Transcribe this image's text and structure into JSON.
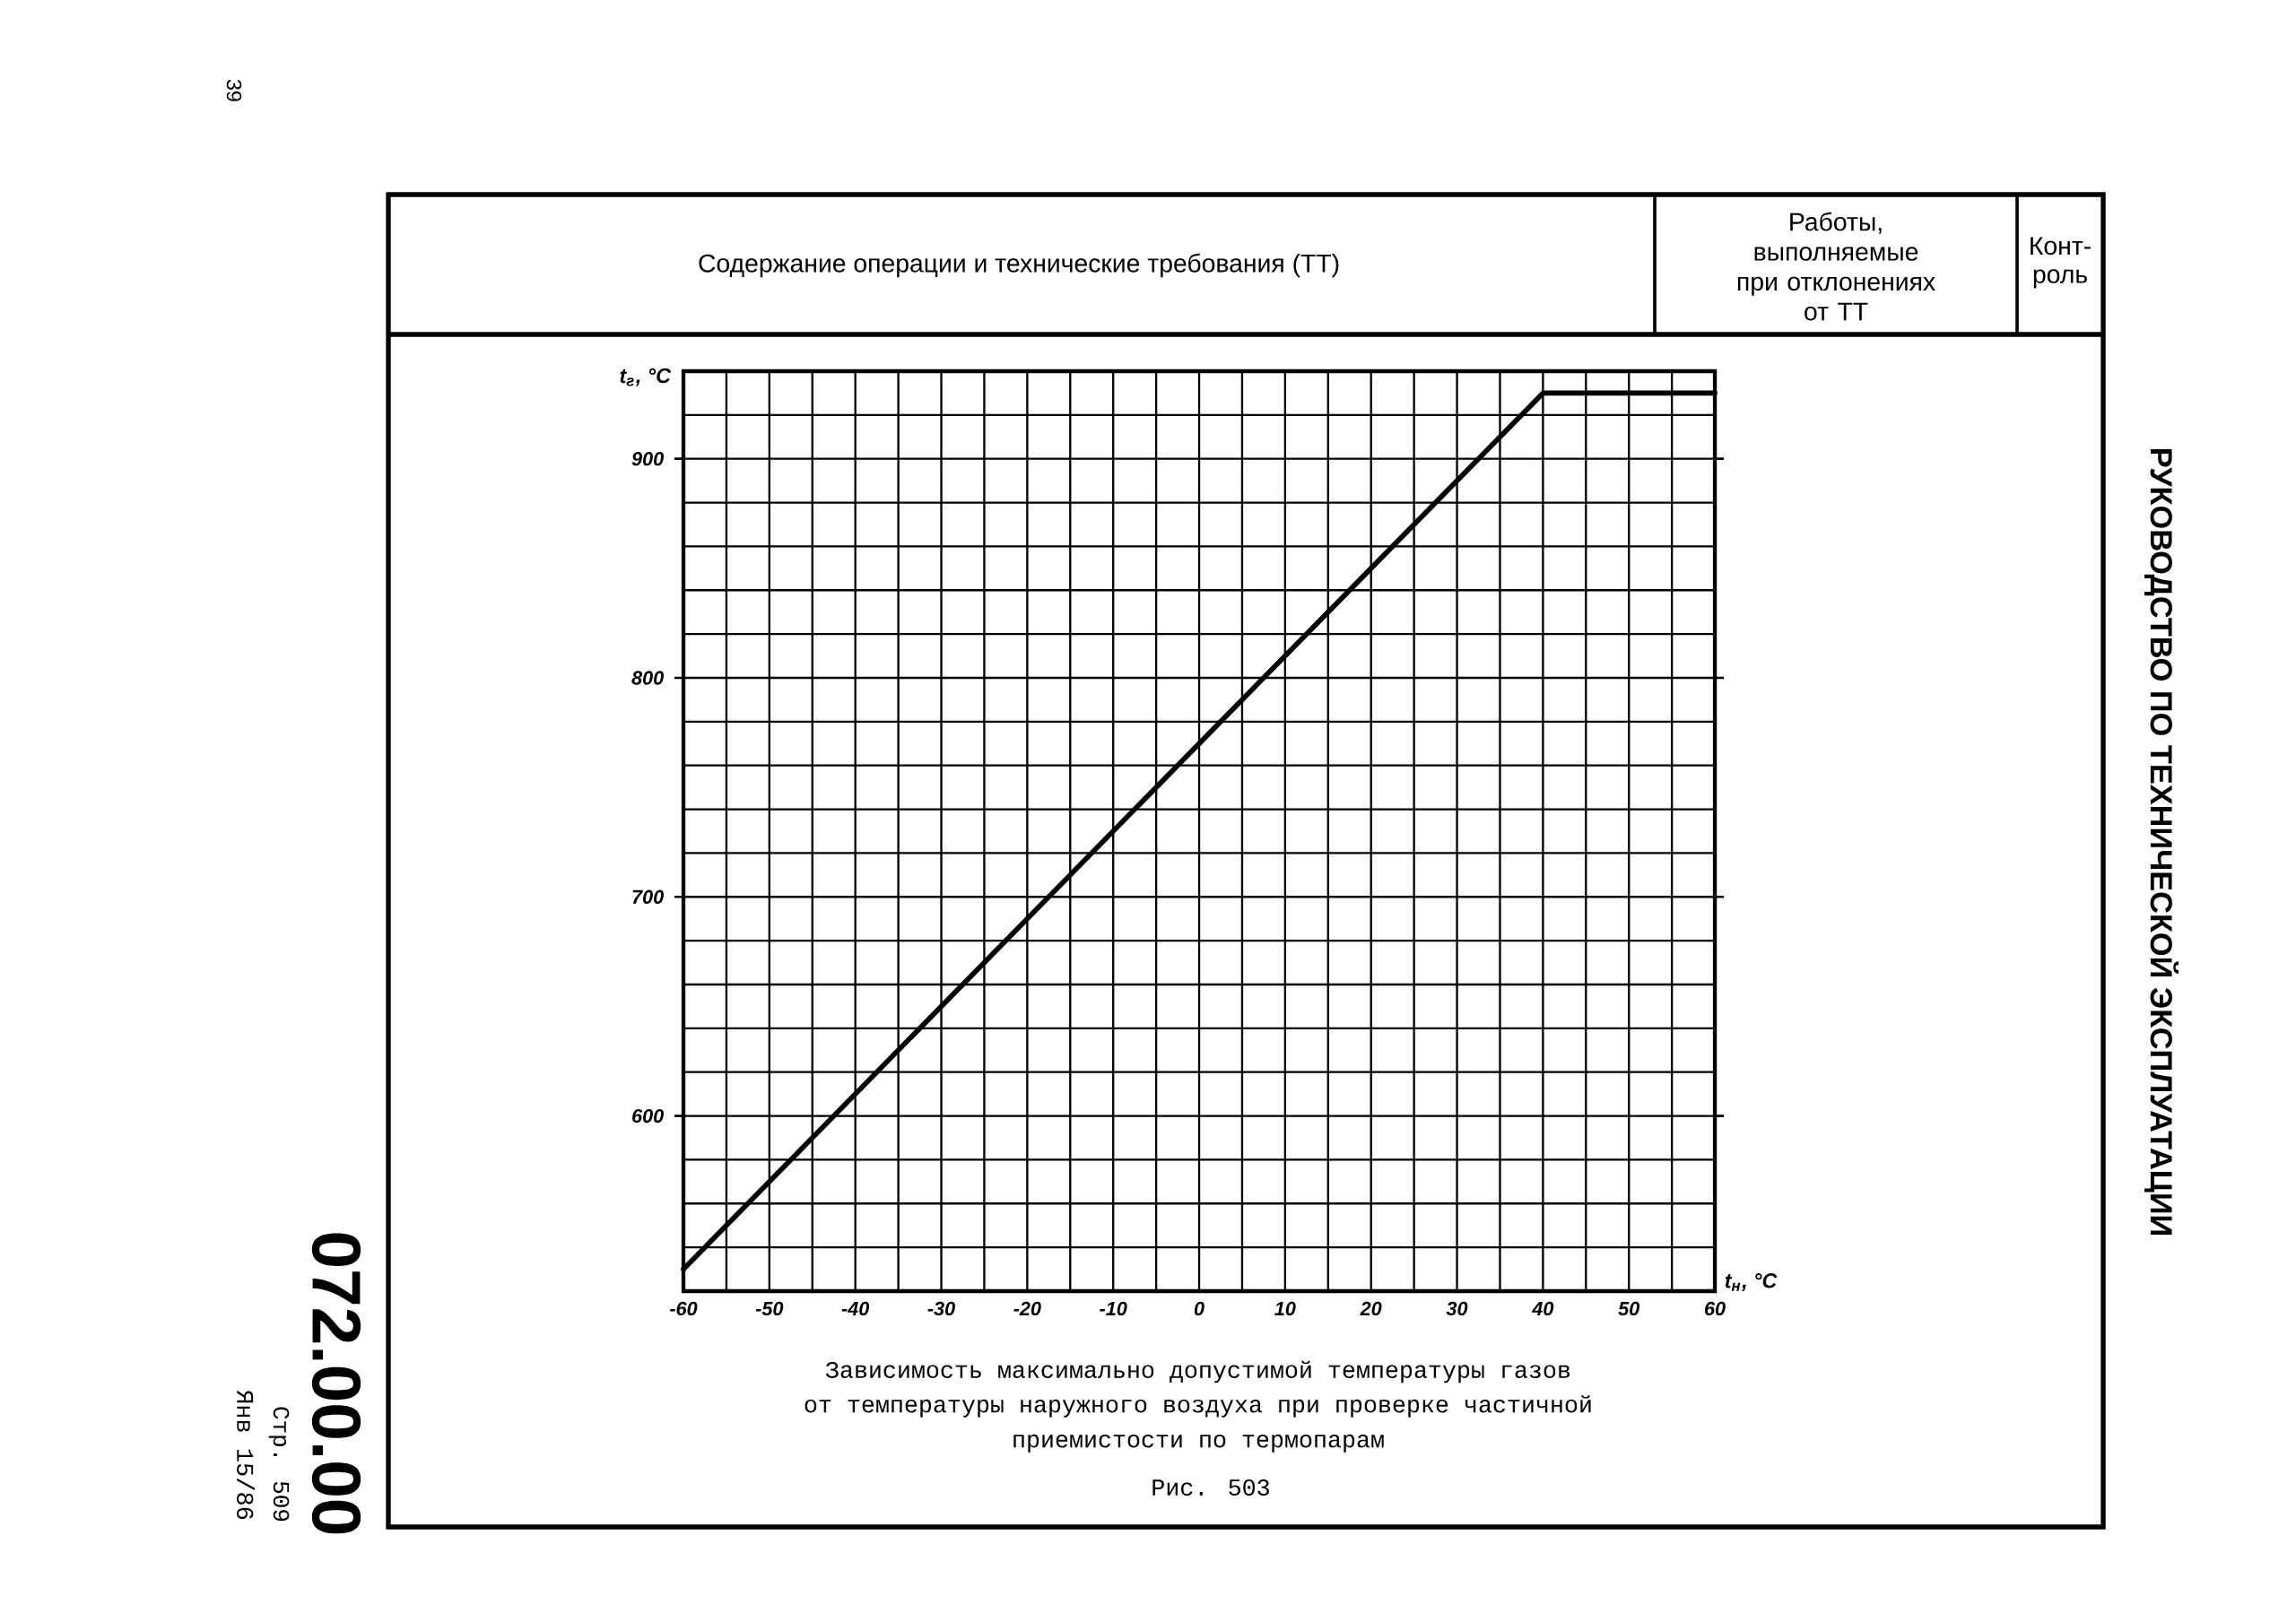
{
  "chart_data": {
    "type": "line",
    "title": "Зависимость максимально допустимой температуры газов",
    "subtitle": "от температуры наружного воздуха при проверке частичной приемистости по термопарам",
    "xlabel": "t$_{н}$, °C",
    "ylabel": "t$_{г}$, °C",
    "x": [
      -60,
      40,
      60
    ],
    "series": [
      {
        "color": "#000000",
        "values": [
          530,
          930,
          930
        ]
      }
    ],
    "xlim": [
      -60,
      60
    ],
    "ylim": [
      520,
      940
    ],
    "xticks": [
      -60,
      {
        "value": -55,
        "label": null
      },
      -50,
      {
        "value": -45,
        "label": null
      },
      -40,
      {
        "value": -35,
        "label": null
      },
      -30,
      {
        "value": -25,
        "label": null
      },
      -20,
      {
        "value": -15,
        "label": null
      },
      -10,
      {
        "value": -5,
        "label": null
      },
      0,
      {
        "value": 5,
        "label": null
      },
      10,
      {
        "value": 15,
        "label": null
      },
      20,
      {
        "value": 25,
        "label": null
      },
      30,
      {
        "value": 35,
        "label": null
      },
      40,
      {
        "value": 45,
        "label": null
      },
      50,
      {
        "value": 55,
        "label": null
      },
      60
    ],
    "yticks": [
      {
        "value": 520,
        "label": null
      },
      {
        "value": 540,
        "label": null
      },
      {
        "value": 560,
        "label": null
      },
      {
        "value": 580,
        "label": null
      },
      600,
      {
        "value": 620,
        "label": null
      },
      {
        "value": 640,
        "label": null
      },
      {
        "value": 660,
        "label": null
      },
      {
        "value": 680,
        "label": null
      },
      700,
      {
        "value": 720,
        "label": null
      },
      {
        "value": 740,
        "label": null
      },
      {
        "value": 760,
        "label": null
      },
      {
        "value": 780,
        "label": null
      },
      800,
      {
        "value": 820,
        "label": null
      },
      {
        "value": 840,
        "label": null
      },
      {
        "value": 860,
        "label": null
      },
      {
        "value": 880,
        "label": null
      },
      900,
      {
        "value": 920,
        "label": null
      },
      {
        "value": 940,
        "label": null
      }
    ],
    "grid": true,
    "marker": "none",
    "line_style": "solid",
    "annotations": [
      "Рис. 503",
      "Содержание операции и технические требования (ТТ)",
      "Работы, выполняемые при отклонениях от ТТ",
      "Конт- роль",
      "РУКОВОДСТВО ПО ТЕХНИЧЕСКОЙ ЭКСПЛУАТАЦИИ",
      "39",
      "072.00.00",
      "Стр. 509",
      "Янв 15/86"
    ]
  }
}
